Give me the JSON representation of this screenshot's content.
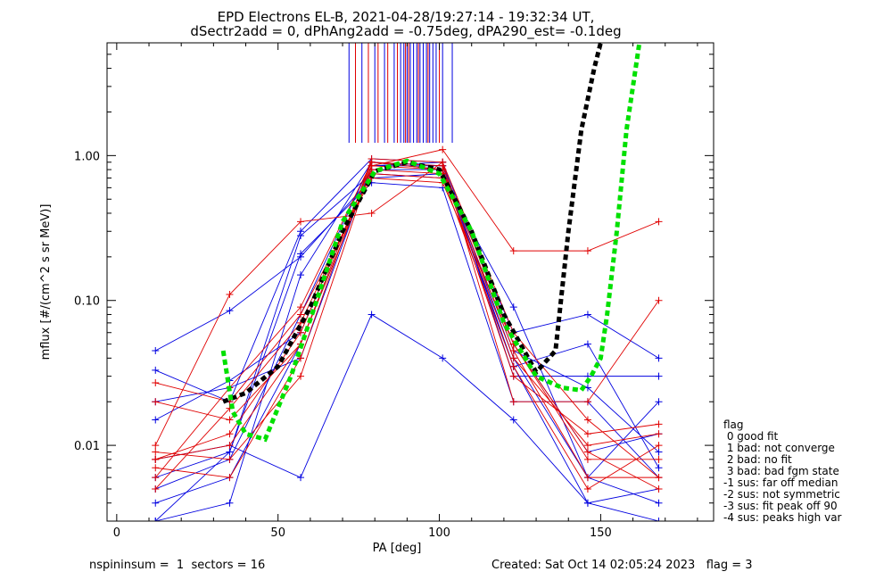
{
  "chart_data": {
    "type": "scatter",
    "title": "EPD Electrons EL-B, 2021-04-28/19:27:14 - 19:32:34 UT,",
    "subtitle": "dSectr2add = 0, dPhAng2add = -0.75deg, dPA290_est=  -0.1deg",
    "xlabel": "PA [deg]",
    "ylabel": "mflux [#/(cm^2 s sr MeV)]",
    "xlim": [
      -3,
      185
    ],
    "ylim": [
      0.003,
      6.0
    ],
    "yscale": "log",
    "xticks": [
      0,
      50,
      100,
      150
    ],
    "xtick_labels": [
      "0",
      "50",
      "100",
      "150"
    ],
    "yticks": [
      0.01,
      0.1,
      1.0
    ],
    "ytick_labels": [
      "0.01",
      "0.10",
      "1.00"
    ],
    "grid": false,
    "colors": {
      "red": "#e00000",
      "blue": "#0000e0",
      "black": "#000000",
      "green": "#00e000"
    },
    "pa_bins": [
      12,
      35,
      57,
      79,
      101,
      123,
      146,
      168
    ],
    "red_spectra_level_at_pa": [
      [
        0.008,
        0.012,
        0.06,
        0.85,
        0.8,
        0.045,
        0.006,
        0.006
      ],
      [
        0.006,
        0.025,
        0.09,
        0.9,
        0.85,
        0.05,
        0.008,
        0.008
      ],
      [
        0.02,
        0.015,
        0.05,
        0.8,
        0.75,
        0.04,
        0.01,
        0.012
      ],
      [
        0.007,
        0.006,
        0.04,
        0.95,
        0.9,
        0.06,
        0.015,
        0.006
      ],
      [
        0.005,
        0.018,
        0.07,
        0.75,
        0.7,
        0.035,
        0.005,
        0.01
      ],
      [
        0.009,
        0.008,
        0.03,
        0.85,
        1.1,
        0.22,
        0.22,
        0.35
      ],
      [
        0.01,
        0.11,
        0.35,
        0.4,
        0.9,
        0.02,
        0.02,
        0.1
      ],
      [
        0.008,
        0.01,
        0.05,
        0.9,
        0.8,
        0.03,
        0.012,
        0.014
      ],
      [
        0.027,
        0.02,
        0.08,
        0.7,
        0.65,
        0.05,
        0.009,
        0.005
      ]
    ],
    "blue_spectra_level_at_pa": [
      [
        0.005,
        0.008,
        0.08,
        0.9,
        0.85,
        0.04,
        0.006,
        0.004
      ],
      [
        0.004,
        0.006,
        0.05,
        0.8,
        0.8,
        0.035,
        0.004,
        0.005
      ],
      [
        0.045,
        0.085,
        0.2,
        0.7,
        0.75,
        0.06,
        0.08,
        0.04
      ],
      [
        0.006,
        0.009,
        0.28,
        0.75,
        0.7,
        0.09,
        0.006,
        0.02
      ],
      [
        0.02,
        0.025,
        0.04,
        0.85,
        0.9,
        0.03,
        0.03,
        0.03
      ],
      [
        0.003,
        0.004,
        0.15,
        0.9,
        0.8,
        0.045,
        0.025,
        0.009
      ],
      [
        0.008,
        0.01,
        0.006,
        0.08,
        0.04,
        0.015,
        0.004,
        0.003
      ],
      [
        0.033,
        0.02,
        0.3,
        0.95,
        0.9,
        0.05,
        0.009,
        0.012
      ],
      [
        0.015,
        0.028,
        0.06,
        0.85,
        0.85,
        0.035,
        0.05,
        0.007
      ],
      [
        0.003,
        0.009,
        0.21,
        0.65,
        0.6,
        0.02,
        0.02,
        0.006
      ]
    ],
    "blue_vertical_lines_pa": [
      72,
      76,
      80,
      83,
      86,
      88,
      89,
      90,
      91,
      92,
      93,
      94,
      95,
      96,
      97,
      98,
      99,
      101,
      104
    ],
    "red_vertical_lines_pa": [
      74,
      78,
      81,
      84,
      87,
      89.5,
      90.5,
      93.5,
      96.5,
      100
    ],
    "black_fit_curve": {
      "x": [
        33,
        40,
        50,
        60,
        70,
        80,
        90,
        100,
        110,
        120,
        130,
        136,
        140,
        144,
        148,
        150
      ],
      "y": [
        0.02,
        0.023,
        0.035,
        0.09,
        0.3,
        0.78,
        0.9,
        0.8,
        0.3,
        0.08,
        0.032,
        0.045,
        0.3,
        1.5,
        4.0,
        6.0
      ]
    },
    "green_fit_curve": {
      "x": [
        33,
        36,
        40,
        46,
        54,
        62,
        70,
        80,
        90,
        100,
        110,
        120,
        130,
        138,
        144,
        147,
        150,
        152,
        155,
        158,
        162
      ],
      "y": [
        0.045,
        0.017,
        0.012,
        0.011,
        0.03,
        0.1,
        0.35,
        0.78,
        0.92,
        0.75,
        0.3,
        0.07,
        0.03,
        0.025,
        0.024,
        0.03,
        0.04,
        0.08,
        0.3,
        1.5,
        6.0
      ]
    }
  },
  "legend": {
    "title": "flag",
    "items": [
      " 0 good fit",
      " 1 bad: not converge",
      " 2 bad: no fit",
      " 3 bad: bad fgm state",
      "-1 sus: far off median",
      "-2 sus: not symmetric",
      "-3 sus: fit peak off 90",
      "-4 sus: peaks high var"
    ]
  },
  "footer": {
    "left": "nspininsum =  1  sectors = 16",
    "right": "Created: Sat Oct 14 02:05:24 2023   flag = 3"
  }
}
